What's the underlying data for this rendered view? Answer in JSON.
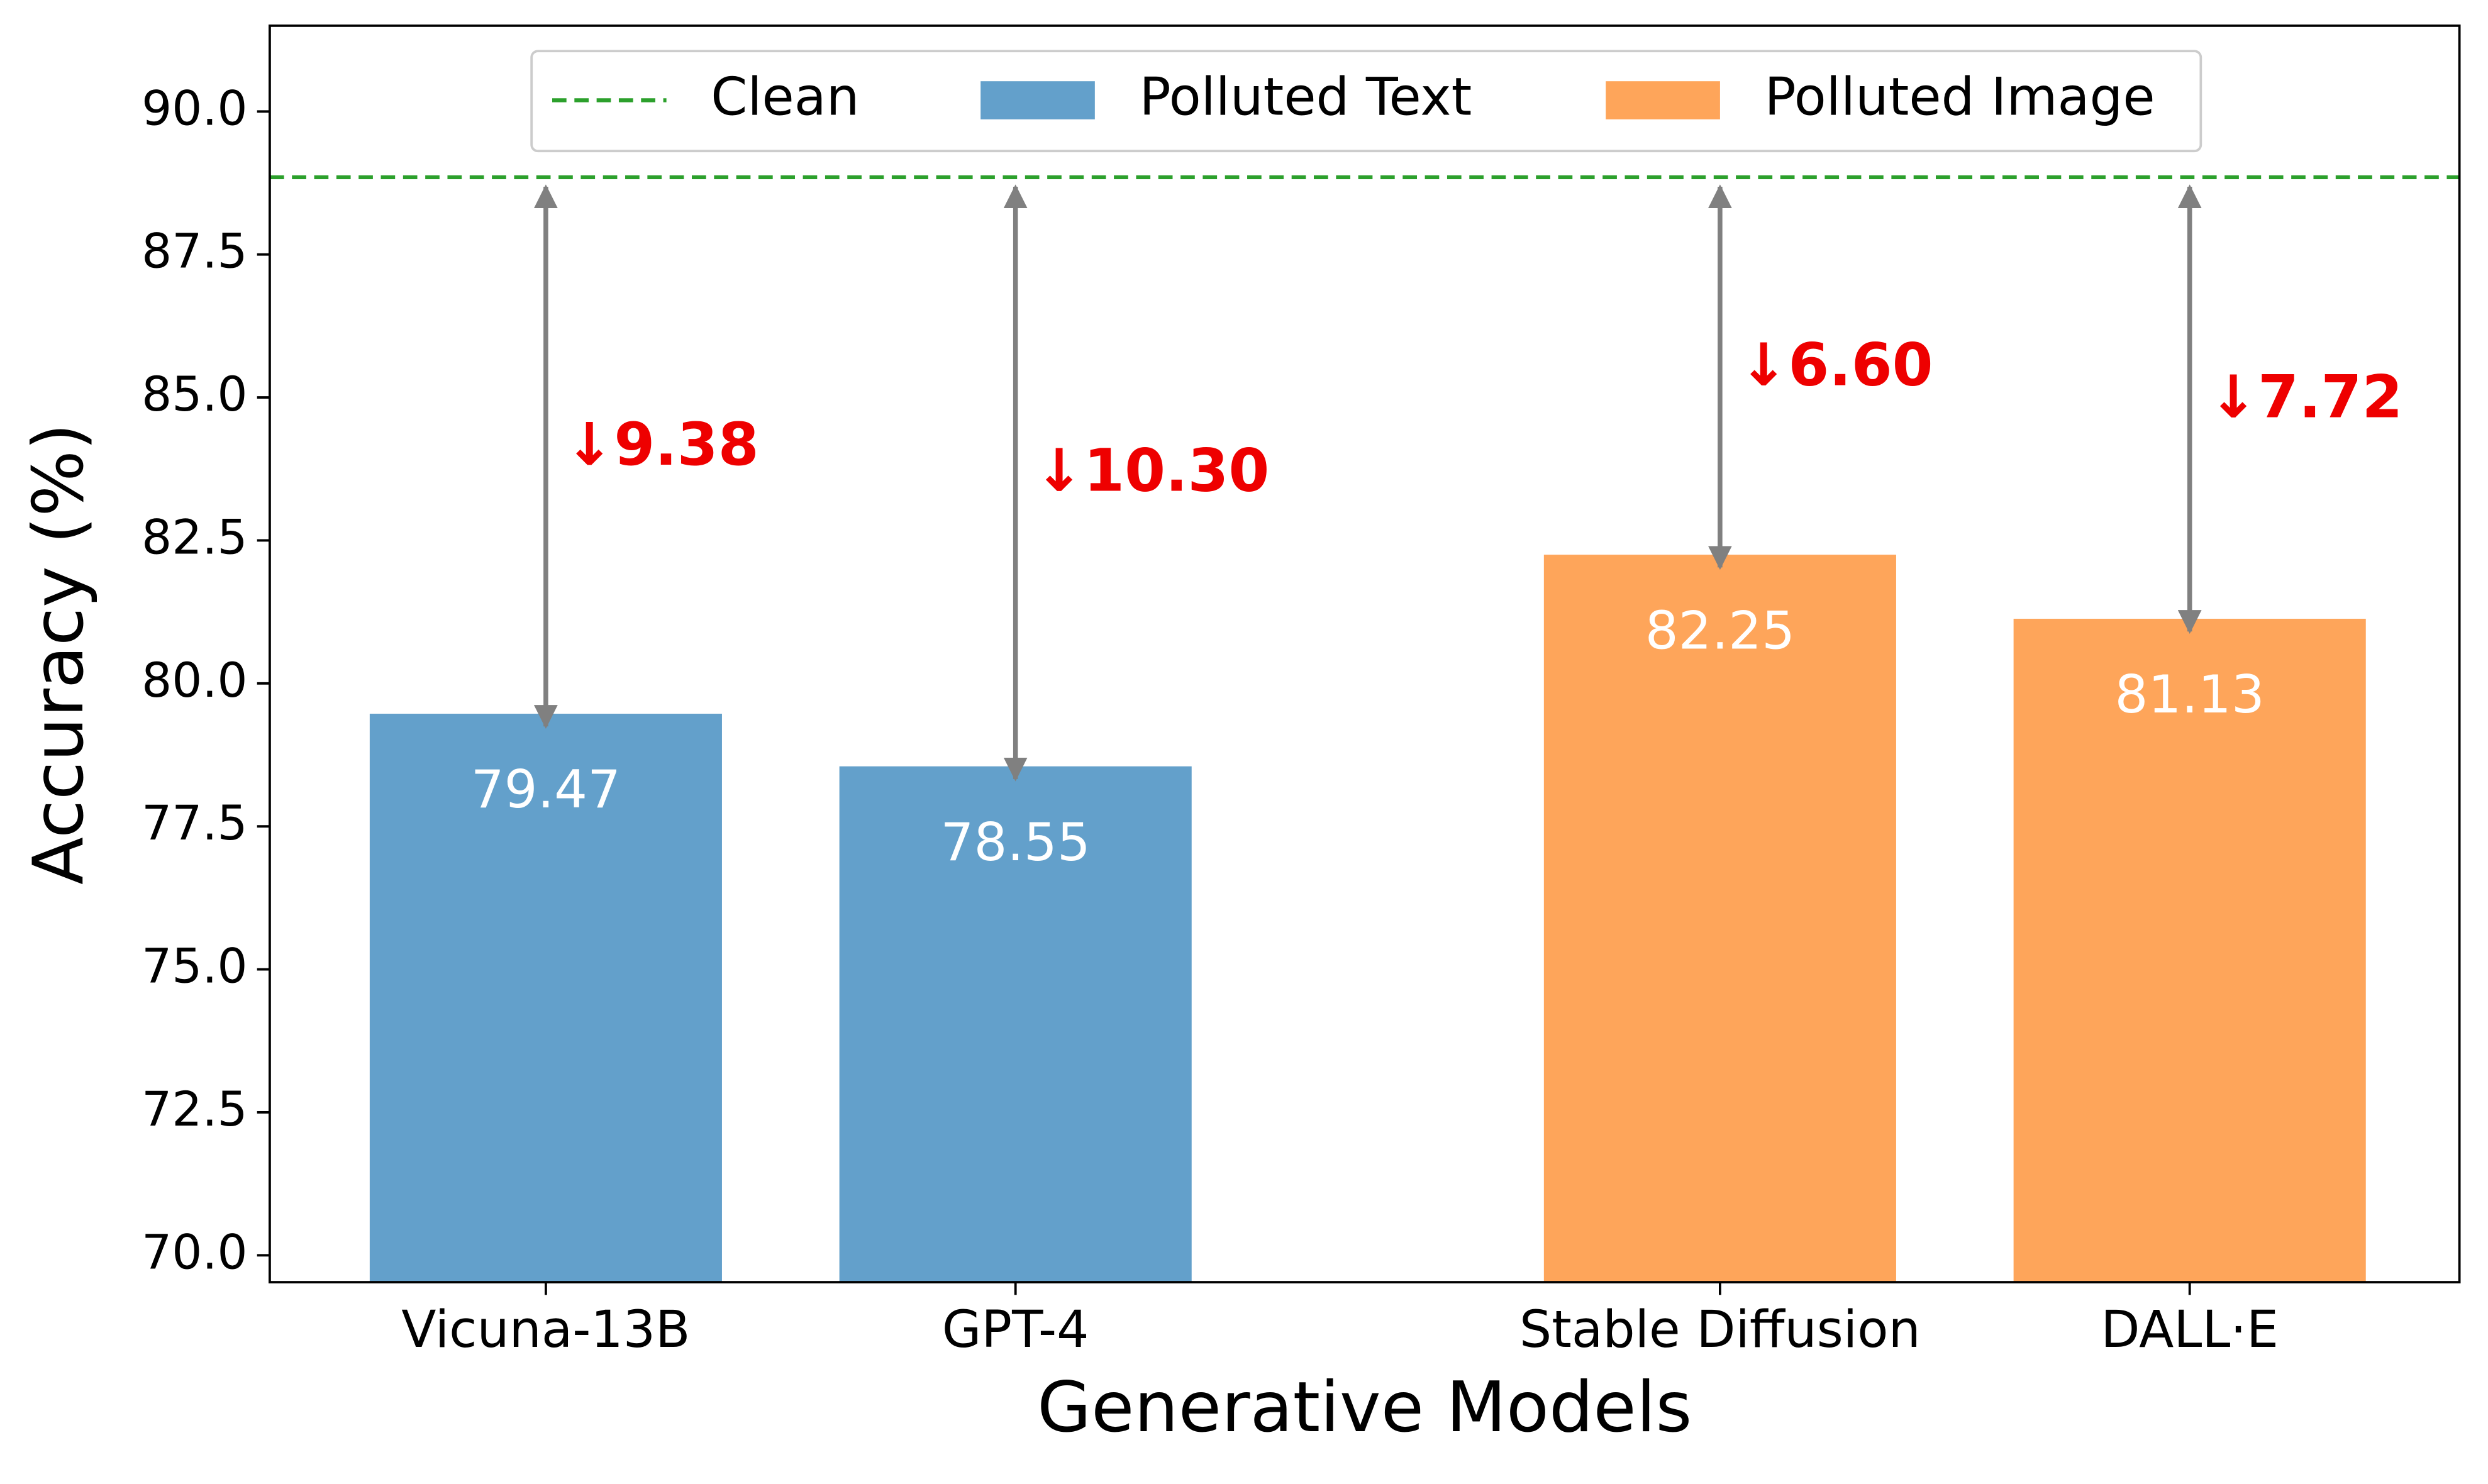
{
  "chart_data": {
    "type": "bar",
    "xlabel": "Generative Models",
    "ylabel": "Accuracy (%)",
    "categories": [
      "Vicuna-13B",
      "GPT-4",
      "Stable Diffusion",
      "DALL·E"
    ],
    "series": [
      {
        "name": "Polluted Text",
        "color": "#63a0cb",
        "values": [
          79.47,
          78.55,
          null,
          null
        ]
      },
      {
        "name": "Polluted Image",
        "color": "#fea55a",
        "values": [
          null,
          null,
          82.25,
          81.13
        ]
      }
    ],
    "reference_line": {
      "name": "Clean",
      "color": "#2ca02c",
      "value": 88.85
    },
    "drops": [
      9.38,
      10.3,
      6.6,
      7.72
    ],
    "drop_labels": [
      "↓9.38",
      "↓10.30",
      "↓6.60",
      "↓7.72"
    ],
    "ylim": [
      69.53,
      91.5
    ],
    "yticks": [
      {
        "value": 70,
        "label": "70.0"
      },
      {
        "value": 72.5,
        "label": "72.5"
      },
      {
        "value": 75,
        "label": "75.0"
      },
      {
        "value": 77.5,
        "label": "77.5"
      },
      {
        "value": 80,
        "label": "80.0"
      },
      {
        "value": 82.5,
        "label": "82.5"
      },
      {
        "value": 85,
        "label": "85.0"
      },
      {
        "value": 87.5,
        "label": "87.5"
      },
      {
        "value": 90,
        "label": "90.0"
      }
    ],
    "legend": "upper center"
  }
}
